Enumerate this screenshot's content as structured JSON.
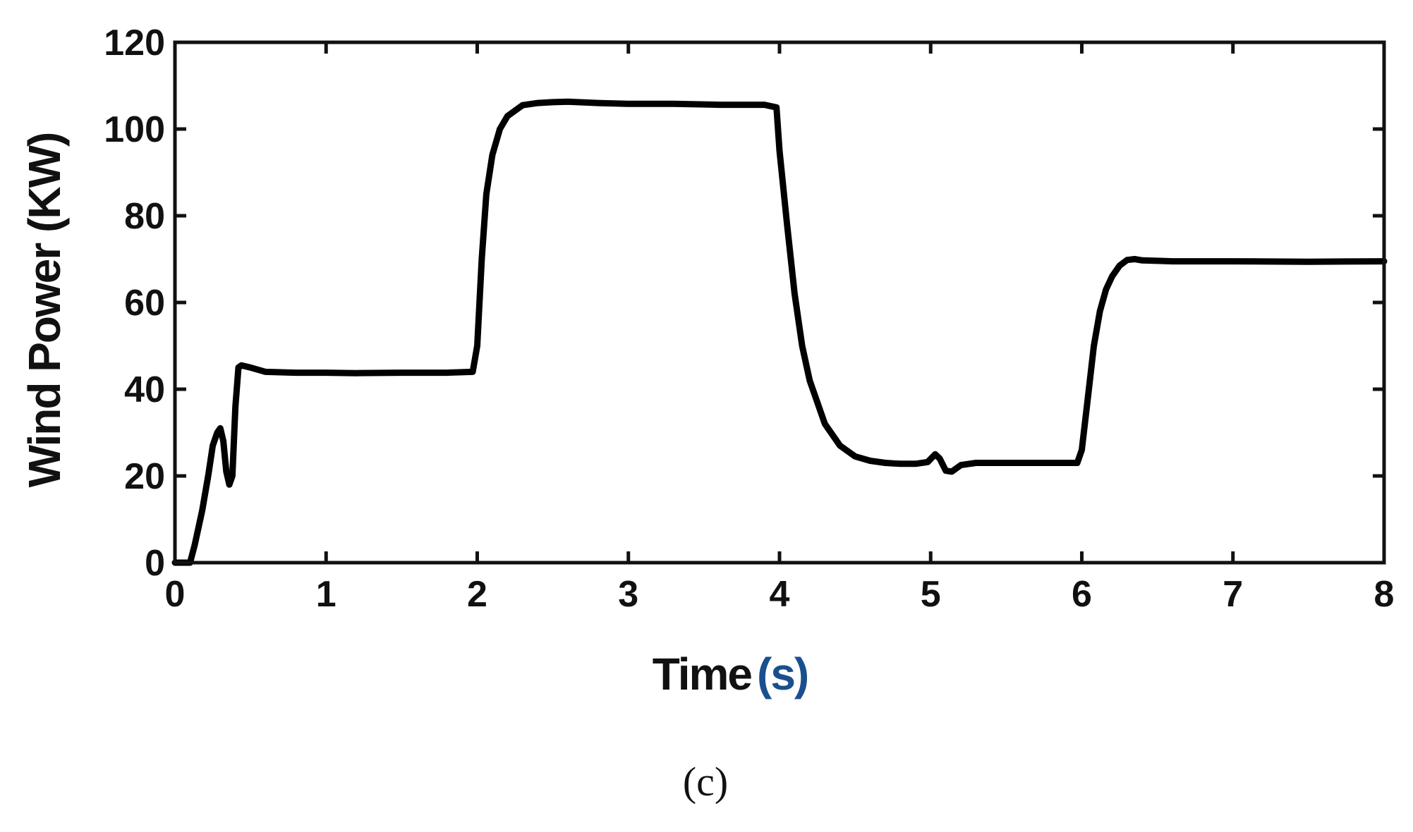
{
  "chart_data": {
    "type": "line",
    "title": "",
    "xlabel": "Time",
    "xlabel_unit": "(s)",
    "ylabel": "Wind Power (KW)",
    "xlim": [
      0,
      8
    ],
    "ylim": [
      0,
      120
    ],
    "x_ticks": [
      0,
      1,
      2,
      3,
      4,
      5,
      6,
      7,
      8
    ],
    "y_ticks": [
      0,
      20,
      40,
      60,
      80,
      100,
      120
    ],
    "grid": false,
    "legend": "none",
    "series": [
      {
        "color": "#000000",
        "x": [
          0,
          0.1,
          0.13,
          0.18,
          0.22,
          0.25,
          0.28,
          0.3,
          0.32,
          0.34,
          0.36,
          0.38,
          0.4,
          0.42,
          0.44,
          0.5,
          0.6,
          0.8,
          1.0,
          1.2,
          1.5,
          1.8,
          1.97,
          2.0,
          2.03,
          2.06,
          2.1,
          2.15,
          2.2,
          2.3,
          2.4,
          2.5,
          2.6,
          2.8,
          3.0,
          3.3,
          3.6,
          3.9,
          3.98,
          4.0,
          4.05,
          4.1,
          4.15,
          4.2,
          4.3,
          4.4,
          4.5,
          4.6,
          4.7,
          4.8,
          4.9,
          4.98,
          5.03,
          5.06,
          5.1,
          5.14,
          5.2,
          5.3,
          5.5,
          5.8,
          5.97,
          6.0,
          6.04,
          6.08,
          6.12,
          6.16,
          6.2,
          6.25,
          6.3,
          6.35,
          6.4,
          6.6,
          7.0,
          7.5,
          8.0
        ],
        "y": [
          0,
          0,
          4,
          12,
          20,
          27,
          30,
          31,
          28,
          21,
          18,
          20,
          36,
          45,
          45.5,
          45,
          44,
          43.8,
          43.8,
          43.7,
          43.8,
          43.8,
          44,
          50,
          70,
          85,
          94,
          100,
          103,
          105.5,
          106,
          106.2,
          106.3,
          106,
          105.8,
          105.8,
          105.6,
          105.6,
          105,
          95,
          78,
          62,
          50,
          42,
          32,
          27,
          24.5,
          23.5,
          23,
          22.8,
          22.8,
          23.2,
          25,
          24,
          21.2,
          21,
          22.5,
          23,
          23,
          23,
          23,
          26,
          38,
          50,
          58,
          63,
          66,
          68.5,
          69.8,
          70,
          69.7,
          69.5,
          69.5,
          69.4,
          69.5
        ]
      }
    ]
  },
  "caption": "(c)"
}
